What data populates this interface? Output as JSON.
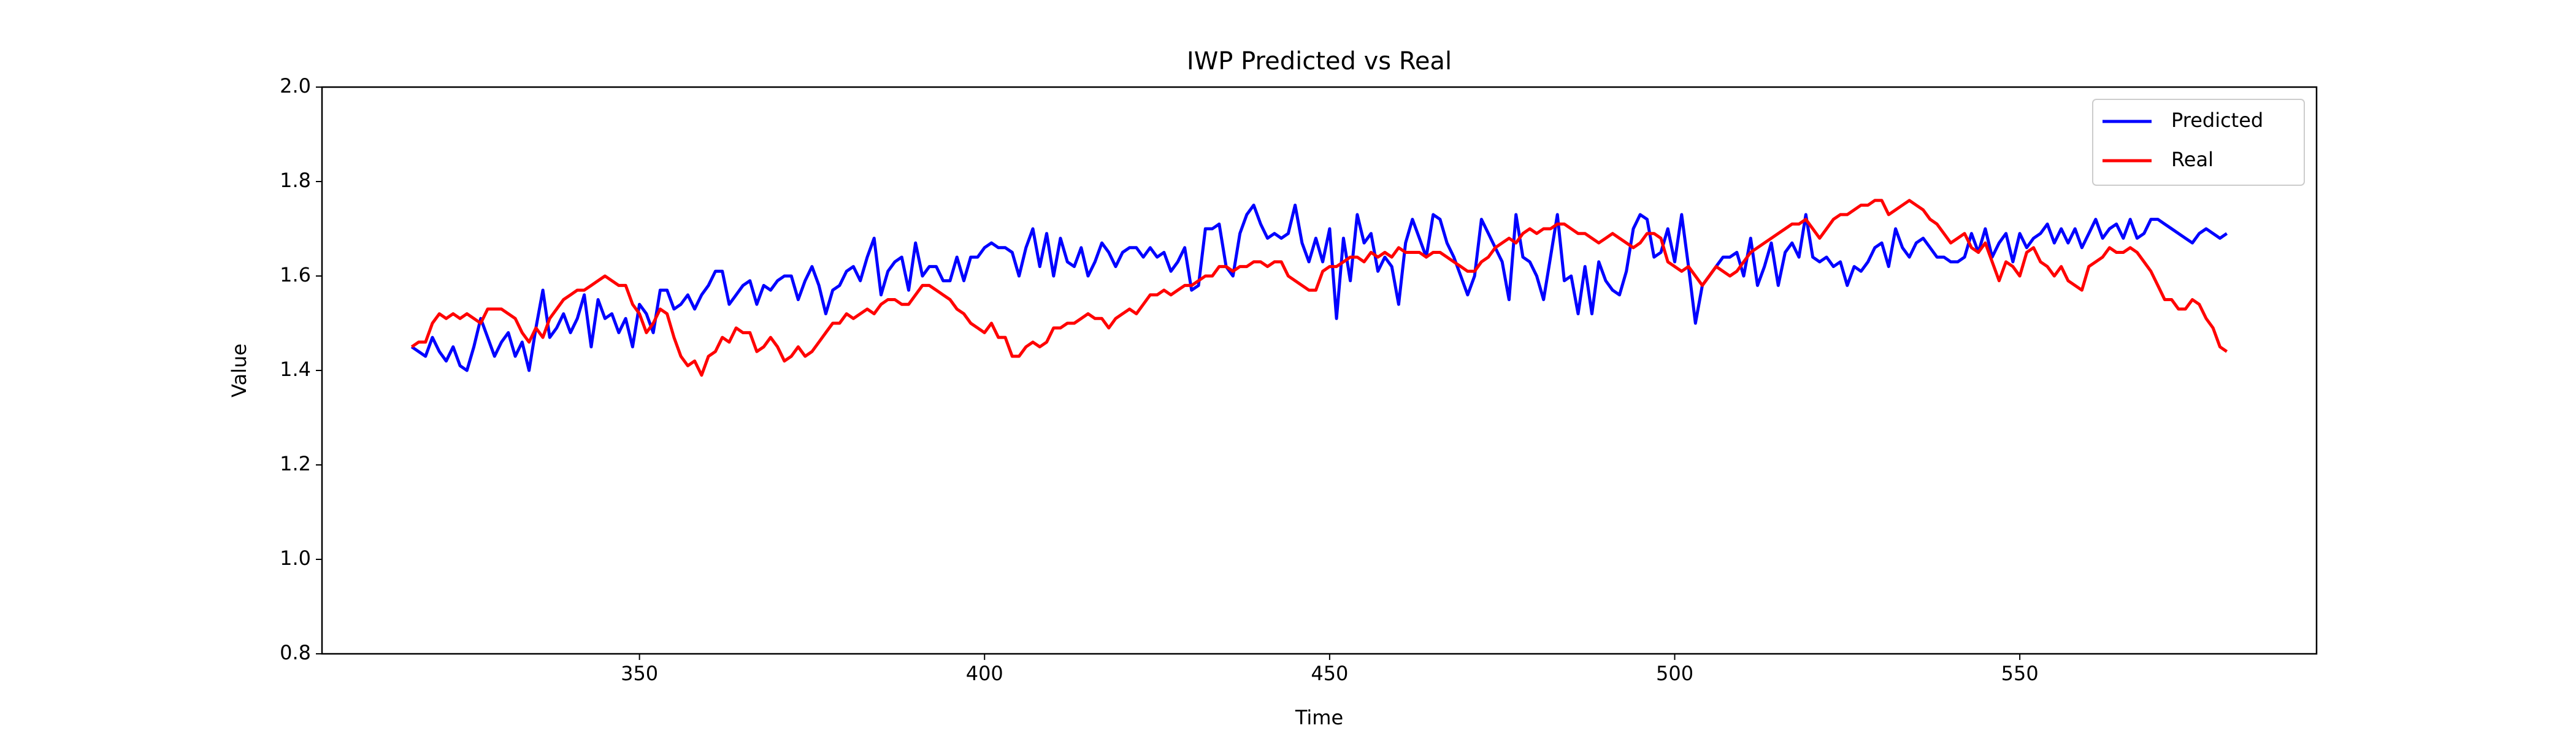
{
  "chart_data": {
    "type": "line",
    "title": "IWP Predicted vs Real",
    "x_label": "Time",
    "y_label": "Value",
    "x": [
      317,
      318,
      319,
      320,
      321,
      322,
      323,
      324,
      325,
      326,
      327,
      328,
      329,
      330,
      331,
      332,
      333,
      334,
      335,
      336,
      337,
      338,
      339,
      340,
      341,
      342,
      343,
      344,
      345,
      346,
      347,
      348,
      349,
      350,
      351,
      352,
      353,
      354,
      355,
      356,
      357,
      358,
      359,
      360,
      361,
      362,
      363,
      364,
      365,
      366,
      367,
      368,
      369,
      370,
      371,
      372,
      373,
      374,
      375,
      376,
      377,
      378,
      379,
      380,
      381,
      382,
      383,
      384,
      385,
      386,
      387,
      388,
      389,
      390,
      391,
      392,
      393,
      394,
      395,
      396,
      397,
      398,
      399,
      400,
      401,
      402,
      403,
      404,
      405,
      406,
      407,
      408,
      409,
      410,
      411,
      412,
      413,
      414,
      415,
      416,
      417,
      418,
      419,
      420,
      421,
      422,
      423,
      424,
      425,
      426,
      427,
      428,
      429,
      430,
      431,
      432,
      433,
      434,
      435,
      436,
      437,
      438,
      439,
      440,
      441,
      442,
      443,
      444,
      445,
      446,
      447,
      448,
      449,
      450,
      451,
      452,
      453,
      454,
      455,
      456,
      457,
      458,
      459,
      460,
      461,
      462,
      463,
      464,
      465,
      466,
      467,
      468,
      469,
      470,
      471,
      472,
      473,
      474,
      475,
      476,
      477,
      478,
      479,
      480,
      481,
      482,
      483,
      484,
      485,
      486,
      487,
      488,
      489,
      490,
      491,
      492,
      493,
      494,
      495,
      496,
      497,
      498,
      499,
      500,
      501,
      502,
      503,
      504,
      505,
      506,
      507,
      508,
      509,
      510,
      511,
      512,
      513,
      514,
      515,
      516,
      517,
      518,
      519,
      520,
      521,
      522,
      523,
      524,
      525,
      526,
      527,
      528,
      529,
      530,
      531,
      532,
      533,
      534,
      535,
      536,
      537,
      538,
      539,
      540,
      541,
      542,
      543,
      544,
      545,
      546,
      547,
      548,
      549,
      550,
      551,
      552,
      553,
      554,
      555,
      556,
      557,
      558,
      559,
      560,
      561,
      562,
      563,
      564,
      565,
      566,
      567,
      568,
      569,
      570,
      571,
      572,
      573,
      574,
      575,
      576,
      577,
      578,
      579,
      580
    ],
    "series": [
      {
        "name": "Predicted",
        "color": "#0000ff",
        "values": [
          1.45,
          1.44,
          1.43,
          1.47,
          1.44,
          1.42,
          1.45,
          1.41,
          1.4,
          1.45,
          1.51,
          1.47,
          1.43,
          1.46,
          1.48,
          1.43,
          1.46,
          1.4,
          1.49,
          1.57,
          1.47,
          1.49,
          1.52,
          1.48,
          1.51,
          1.56,
          1.45,
          1.55,
          1.51,
          1.52,
          1.48,
          1.51,
          1.45,
          1.54,
          1.52,
          1.48,
          1.57,
          1.57,
          1.53,
          1.54,
          1.56,
          1.53,
          1.56,
          1.58,
          1.61,
          1.61,
          1.54,
          1.56,
          1.58,
          1.59,
          1.54,
          1.58,
          1.57,
          1.59,
          1.6,
          1.6,
          1.55,
          1.59,
          1.62,
          1.58,
          1.52,
          1.57,
          1.58,
          1.61,
          1.62,
          1.59,
          1.64,
          1.68,
          1.56,
          1.61,
          1.63,
          1.64,
          1.57,
          1.67,
          1.6,
          1.62,
          1.62,
          1.59,
          1.59,
          1.64,
          1.59,
          1.64,
          1.64,
          1.66,
          1.67,
          1.66,
          1.66,
          1.65,
          1.6,
          1.66,
          1.7,
          1.62,
          1.69,
          1.6,
          1.68,
          1.63,
          1.62,
          1.66,
          1.6,
          1.63,
          1.67,
          1.65,
          1.62,
          1.65,
          1.66,
          1.66,
          1.64,
          1.66,
          1.64,
          1.65,
          1.61,
          1.63,
          1.66,
          1.57,
          1.58,
          1.7,
          1.7,
          1.71,
          1.62,
          1.6,
          1.69,
          1.73,
          1.75,
          1.71,
          1.68,
          1.69,
          1.68,
          1.69,
          1.75,
          1.67,
          1.63,
          1.68,
          1.63,
          1.7,
          1.51,
          1.68,
          1.59,
          1.73,
          1.67,
          1.69,
          1.61,
          1.64,
          1.62,
          1.54,
          1.67,
          1.72,
          1.68,
          1.64,
          1.73,
          1.72,
          1.67,
          1.64,
          1.6,
          1.56,
          1.6,
          1.72,
          1.69,
          1.66,
          1.63,
          1.55,
          1.73,
          1.64,
          1.63,
          1.6,
          1.55,
          1.64,
          1.73,
          1.59,
          1.6,
          1.52,
          1.62,
          1.52,
          1.63,
          1.59,
          1.57,
          1.56,
          1.61,
          1.7,
          1.73,
          1.72,
          1.64,
          1.65,
          1.7,
          1.63,
          1.73,
          1.62,
          1.5,
          1.58,
          1.6,
          1.62,
          1.64,
          1.64,
          1.65,
          1.6,
          1.68,
          1.58,
          1.62,
          1.67,
          1.58,
          1.65,
          1.67,
          1.64,
          1.73,
          1.64,
          1.63,
          1.64,
          1.62,
          1.63,
          1.58,
          1.62,
          1.61,
          1.63,
          1.66,
          1.67,
          1.62,
          1.7,
          1.66,
          1.64,
          1.67,
          1.68,
          1.66,
          1.64,
          1.64,
          1.63,
          1.63,
          1.64,
          1.69,
          1.65,
          1.7,
          1.64,
          1.67,
          1.69,
          1.63,
          1.69,
          1.66,
          1.68,
          1.69,
          1.71,
          1.67,
          1.7,
          1.67,
          1.7,
          1.66,
          1.69,
          1.72,
          1.68,
          1.7,
          1.71,
          1.68,
          1.72,
          1.68,
          1.69,
          1.72,
          1.72,
          1.71,
          1.7,
          1.69,
          1.68,
          1.67,
          1.69,
          1.7,
          1.69,
          1.68,
          1.69
        ]
      },
      {
        "name": "Real",
        "color": "#ff0000",
        "values": [
          1.45,
          1.46,
          1.46,
          1.5,
          1.52,
          1.51,
          1.52,
          1.51,
          1.52,
          1.51,
          1.5,
          1.53,
          1.53,
          1.53,
          1.52,
          1.51,
          1.48,
          1.46,
          1.49,
          1.47,
          1.51,
          1.53,
          1.55,
          1.56,
          1.57,
          1.57,
          1.58,
          1.59,
          1.6,
          1.59,
          1.58,
          1.58,
          1.54,
          1.52,
          1.48,
          1.5,
          1.53,
          1.52,
          1.47,
          1.43,
          1.41,
          1.42,
          1.39,
          1.43,
          1.44,
          1.47,
          1.46,
          1.49,
          1.48,
          1.48,
          1.44,
          1.45,
          1.47,
          1.45,
          1.42,
          1.43,
          1.45,
          1.43,
          1.44,
          1.46,
          1.48,
          1.5,
          1.5,
          1.52,
          1.51,
          1.52,
          1.53,
          1.52,
          1.54,
          1.55,
          1.55,
          1.54,
          1.54,
          1.56,
          1.58,
          1.58,
          1.57,
          1.56,
          1.55,
          1.53,
          1.52,
          1.5,
          1.49,
          1.48,
          1.5,
          1.47,
          1.47,
          1.43,
          1.43,
          1.45,
          1.46,
          1.45,
          1.46,
          1.49,
          1.49,
          1.5,
          1.5,
          1.51,
          1.52,
          1.51,
          1.51,
          1.49,
          1.51,
          1.52,
          1.53,
          1.52,
          1.54,
          1.56,
          1.56,
          1.57,
          1.56,
          1.57,
          1.58,
          1.58,
          1.59,
          1.6,
          1.6,
          1.62,
          1.62,
          1.61,
          1.62,
          1.62,
          1.63,
          1.63,
          1.62,
          1.63,
          1.63,
          1.6,
          1.59,
          1.58,
          1.57,
          1.57,
          1.61,
          1.62,
          1.62,
          1.63,
          1.64,
          1.64,
          1.63,
          1.65,
          1.64,
          1.65,
          1.64,
          1.66,
          1.65,
          1.65,
          1.65,
          1.64,
          1.65,
          1.65,
          1.64,
          1.63,
          1.62,
          1.61,
          1.61,
          1.63,
          1.64,
          1.66,
          1.67,
          1.68,
          1.67,
          1.69,
          1.7,
          1.69,
          1.7,
          1.7,
          1.71,
          1.71,
          1.7,
          1.69,
          1.69,
          1.68,
          1.67,
          1.68,
          1.69,
          1.68,
          1.67,
          1.66,
          1.67,
          1.69,
          1.69,
          1.68,
          1.63,
          1.62,
          1.61,
          1.62,
          1.6,
          1.58,
          1.6,
          1.62,
          1.61,
          1.6,
          1.61,
          1.63,
          1.65,
          1.66,
          1.67,
          1.68,
          1.69,
          1.7,
          1.71,
          1.71,
          1.72,
          1.7,
          1.68,
          1.7,
          1.72,
          1.73,
          1.73,
          1.74,
          1.75,
          1.75,
          1.76,
          1.76,
          1.73,
          1.74,
          1.75,
          1.76,
          1.75,
          1.74,
          1.72,
          1.71,
          1.69,
          1.67,
          1.68,
          1.69,
          1.66,
          1.65,
          1.67,
          1.63,
          1.59,
          1.63,
          1.62,
          1.6,
          1.65,
          1.66,
          1.63,
          1.62,
          1.6,
          1.62,
          1.59,
          1.58,
          1.57,
          1.62,
          1.63,
          1.64,
          1.66,
          1.65,
          1.65,
          1.66,
          1.65,
          1.63,
          1.61,
          1.58,
          1.55,
          1.55,
          1.53,
          1.53,
          1.55,
          1.54,
          1.51,
          1.49,
          1.45,
          1.44
        ]
      }
    ],
    "xlim": [
      304,
      593
    ],
    "xticks": [
      350,
      400,
      450,
      500,
      550
    ],
    "ylim": [
      0.8,
      2.0
    ],
    "yticks": [
      {
        "value": 0.8,
        "label": "0.8"
      },
      {
        "value": 1.0,
        "label": "1.0"
      },
      {
        "value": 1.2,
        "label": "1.2"
      },
      {
        "value": 1.4,
        "label": "1.4"
      },
      {
        "value": 1.6,
        "label": "1.6"
      },
      {
        "value": 1.8,
        "label": "1.8"
      },
      {
        "value": 2.0,
        "label": "2.0"
      }
    ],
    "grid": false,
    "legend": "upper right"
  }
}
